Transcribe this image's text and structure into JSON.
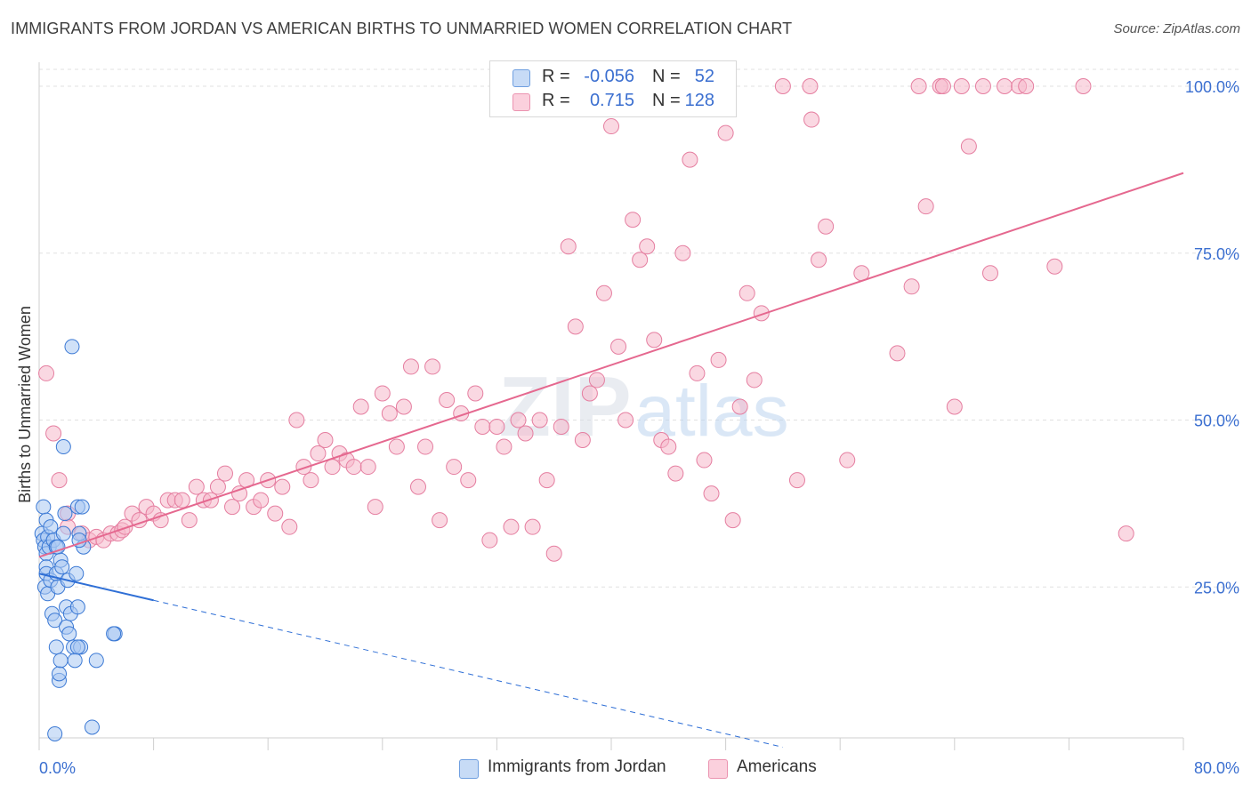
{
  "title": "IMMIGRANTS FROM JORDAN VS AMERICAN BIRTHS TO UNMARRIED WOMEN CORRELATION CHART",
  "source": "Source: ZipAtlas.com",
  "watermark": {
    "zip": "ZIP",
    "atlas": "atlas"
  },
  "legend": {
    "rows": [
      {
        "r_label": "R =",
        "r_value": "-0.056",
        "n_label": "N =",
        "n_value": "52",
        "color": "#a9c8f2"
      },
      {
        "r_label": "R =",
        "r_value": "0.715",
        "n_label": "N =",
        "n_value": "128",
        "color": "#f6b8cb"
      }
    ]
  },
  "bottom_legend": [
    {
      "label": "Immigrants from Jordan",
      "color": "#a9c8f2"
    },
    {
      "label": "Americans",
      "color": "#f6b8cb"
    }
  ],
  "chart_data": {
    "type": "scatter",
    "title": "IMMIGRANTS FROM JORDAN VS AMERICAN BIRTHS TO UNMARRIED WOMEN CORRELATION CHART",
    "xlabel": "",
    "ylabel": "Births to Unmarried Women",
    "xlim": [
      0,
      80
    ],
    "ylim": [
      0,
      102
    ],
    "x_tick_labels": [
      "0.0%",
      "80.0%"
    ],
    "y_tick_labels": [
      "25.0%",
      "50.0%",
      "75.0%",
      "100.0%"
    ],
    "y_ticks": [
      25,
      50,
      75,
      100
    ],
    "grid": true,
    "legend_position": "top-center",
    "colors": {
      "jordan_fill": "#a9c8f2",
      "jordan_stroke": "#3a78d4",
      "jordan_line": "#2f6fd6",
      "americans_fill": "#f6b8cb",
      "americans_stroke": "#e57ea0",
      "americans_line": "#e5688f",
      "tick_label": "#3b6fd0"
    },
    "series": [
      {
        "name": "Immigrants from Jordan",
        "r": -0.056,
        "n": 52,
        "trend": {
          "x": [
            0,
            8
          ],
          "y": [
            27,
            23
          ]
        },
        "trend_extension": {
          "x": [
            8,
            52
          ],
          "y": [
            23,
            1
          ]
        },
        "points": [
          [
            0.2,
            33
          ],
          [
            0.3,
            32
          ],
          [
            0.4,
            31
          ],
          [
            0.5,
            30
          ],
          [
            0.5,
            28
          ],
          [
            0.5,
            27
          ],
          [
            0.4,
            25
          ],
          [
            0.6,
            24
          ],
          [
            0.3,
            37
          ],
          [
            0.5,
            35
          ],
          [
            0.6,
            32.5
          ],
          [
            0.7,
            31
          ],
          [
            0.8,
            34
          ],
          [
            0.8,
            26
          ],
          [
            0.9,
            21
          ],
          [
            1.0,
            32
          ],
          [
            1.1,
            20
          ],
          [
            1.2,
            16
          ],
          [
            1.2,
            27
          ],
          [
            1.2,
            31
          ],
          [
            1.3,
            25
          ],
          [
            1.3,
            31
          ],
          [
            1.4,
            11
          ],
          [
            1.4,
            12
          ],
          [
            1.5,
            14
          ],
          [
            1.5,
            29
          ],
          [
            1.6,
            28
          ],
          [
            1.7,
            33
          ],
          [
            1.8,
            36
          ],
          [
            1.9,
            22
          ],
          [
            1.9,
            19
          ],
          [
            2.0,
            26
          ],
          [
            2.1,
            18
          ],
          [
            2.2,
            21
          ],
          [
            2.3,
            61
          ],
          [
            2.4,
            16
          ],
          [
            2.5,
            14
          ],
          [
            2.6,
            27
          ],
          [
            2.7,
            37
          ],
          [
            2.7,
            22
          ],
          [
            2.9,
            16
          ],
          [
            3.0,
            37
          ],
          [
            1.7,
            46
          ],
          [
            2.8,
            33
          ],
          [
            3.1,
            31
          ],
          [
            2.7,
            16
          ],
          [
            4.0,
            14
          ],
          [
            2.8,
            32
          ],
          [
            5.3,
            18
          ],
          [
            5.2,
            18
          ],
          [
            1.1,
            3
          ],
          [
            3.7,
            4
          ]
        ]
      },
      {
        "name": "Americans",
        "r": 0.715,
        "n": 128,
        "trend": {
          "x": [
            0,
            80
          ],
          "y": [
            29.5,
            87
          ]
        },
        "points": [
          [
            0.5,
            57
          ],
          [
            1.0,
            48
          ],
          [
            1.4,
            41
          ],
          [
            2.0,
            36
          ],
          [
            2.0,
            34
          ],
          [
            3.0,
            33
          ],
          [
            3.5,
            32
          ],
          [
            4.0,
            32.5
          ],
          [
            4.5,
            32
          ],
          [
            5.0,
            33
          ],
          [
            5.5,
            33
          ],
          [
            5.8,
            33.5
          ],
          [
            6.0,
            34
          ],
          [
            6.5,
            36
          ],
          [
            7.0,
            35
          ],
          [
            7.5,
            37
          ],
          [
            8.0,
            36
          ],
          [
            8.5,
            35
          ],
          [
            9.0,
            38
          ],
          [
            9.5,
            38
          ],
          [
            10.0,
            38
          ],
          [
            10.5,
            35
          ],
          [
            11.0,
            40
          ],
          [
            11.5,
            38
          ],
          [
            12.0,
            38
          ],
          [
            12.5,
            40
          ],
          [
            13.0,
            42
          ],
          [
            13.5,
            37
          ],
          [
            14.0,
            39
          ],
          [
            14.5,
            41
          ],
          [
            15.0,
            37
          ],
          [
            15.5,
            38
          ],
          [
            16.0,
            41
          ],
          [
            16.5,
            36
          ],
          [
            17.0,
            40
          ],
          [
            17.5,
            34
          ],
          [
            18.0,
            50
          ],
          [
            18.5,
            43
          ],
          [
            19.0,
            41
          ],
          [
            19.5,
            45
          ],
          [
            20.0,
            47
          ],
          [
            20.5,
            43
          ],
          [
            21.0,
            45
          ],
          [
            21.5,
            44
          ],
          [
            22.0,
            43
          ],
          [
            22.5,
            52
          ],
          [
            23.0,
            43
          ],
          [
            23.5,
            37
          ],
          [
            24.0,
            54
          ],
          [
            24.5,
            51
          ],
          [
            25.0,
            46
          ],
          [
            25.5,
            52
          ],
          [
            26.0,
            58
          ],
          [
            26.5,
            40
          ],
          [
            27.0,
            46
          ],
          [
            27.5,
            58
          ],
          [
            28.0,
            35
          ],
          [
            28.5,
            53
          ],
          [
            29.0,
            43
          ],
          [
            29.5,
            51
          ],
          [
            30.0,
            41
          ],
          [
            30.5,
            54
          ],
          [
            31.0,
            49
          ],
          [
            31.5,
            32
          ],
          [
            32.0,
            49
          ],
          [
            32.5,
            46
          ],
          [
            33.0,
            34
          ],
          [
            33.5,
            50
          ],
          [
            34.0,
            48
          ],
          [
            34.5,
            34
          ],
          [
            35.0,
            50
          ],
          [
            35.5,
            41
          ],
          [
            36.0,
            30
          ],
          [
            36.5,
            49
          ],
          [
            37.0,
            76
          ],
          [
            37.5,
            64
          ],
          [
            38.0,
            47
          ],
          [
            38.5,
            54
          ],
          [
            39.0,
            56
          ],
          [
            39.5,
            69
          ],
          [
            40.0,
            94
          ],
          [
            40.5,
            61
          ],
          [
            41.0,
            50
          ],
          [
            41.5,
            80
          ],
          [
            42.0,
            74
          ],
          [
            42.5,
            76
          ],
          [
            43.0,
            62
          ],
          [
            43.5,
            47
          ],
          [
            44.0,
            46
          ],
          [
            44.5,
            42
          ],
          [
            45.0,
            75
          ],
          [
            45.5,
            89
          ],
          [
            46.0,
            57
          ],
          [
            46.5,
            44
          ],
          [
            47.0,
            39
          ],
          [
            47.5,
            59
          ],
          [
            48.0,
            93
          ],
          [
            48.5,
            35
          ],
          [
            49.0,
            52
          ],
          [
            49.5,
            69
          ],
          [
            50.0,
            56
          ],
          [
            50.5,
            66
          ],
          [
            52.0,
            100
          ],
          [
            53.0,
            41
          ],
          [
            54.0,
            95
          ],
          [
            54.5,
            74
          ],
          [
            55.0,
            79
          ],
          [
            56.5,
            44
          ],
          [
            57.5,
            72
          ],
          [
            60.0,
            60
          ],
          [
            61.0,
            70
          ],
          [
            61.5,
            100
          ],
          [
            62.0,
            82
          ],
          [
            63.0,
            100
          ],
          [
            64.0,
            52
          ],
          [
            64.5,
            100
          ],
          [
            65.0,
            91
          ],
          [
            66.0,
            100
          ],
          [
            66.5,
            72
          ],
          [
            67.5,
            100
          ],
          [
            68.5,
            100
          ],
          [
            71.0,
            73
          ],
          [
            73.0,
            100
          ],
          [
            76.0,
            33
          ],
          [
            53.9,
            100
          ],
          [
            63.2,
            100
          ],
          [
            69.0,
            100
          ],
          [
            39.8,
            100
          ]
        ]
      }
    ]
  }
}
